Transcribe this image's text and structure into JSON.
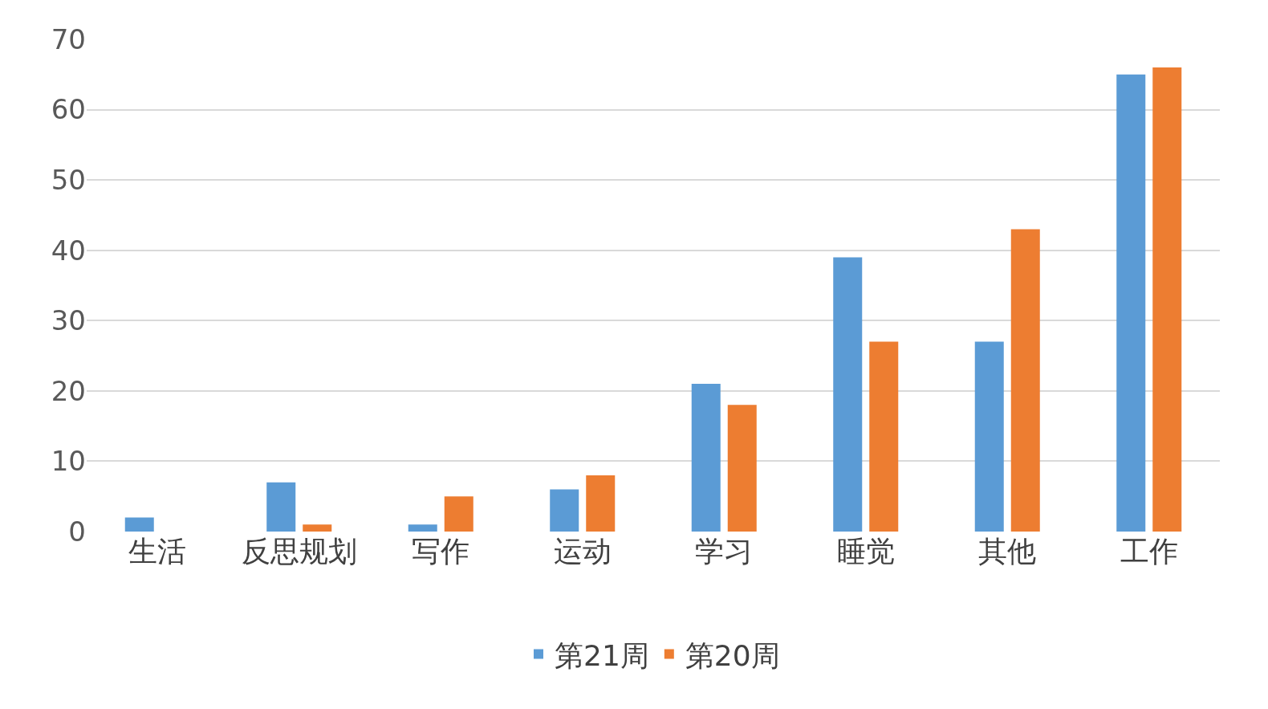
{
  "chart_data": {
    "type": "bar",
    "categories": [
      "生活",
      "反思规划",
      "写作",
      "运动",
      "学习",
      "睡觉",
      "其他",
      "工作"
    ],
    "series": [
      {
        "name": "第21周",
        "color": "#5b9bd5",
        "values": [
          2,
          7,
          1,
          6,
          21,
          39,
          27,
          65
        ]
      },
      {
        "name": "第20周",
        "color": "#ed7d31",
        "values": [
          0,
          1,
          5,
          8,
          18,
          27,
          43,
          66
        ]
      }
    ],
    "ylim": [
      0,
      70
    ],
    "yticks": [
      0,
      10,
      20,
      30,
      40,
      50,
      60,
      70
    ],
    "grid": "y",
    "legend": "bottom"
  }
}
